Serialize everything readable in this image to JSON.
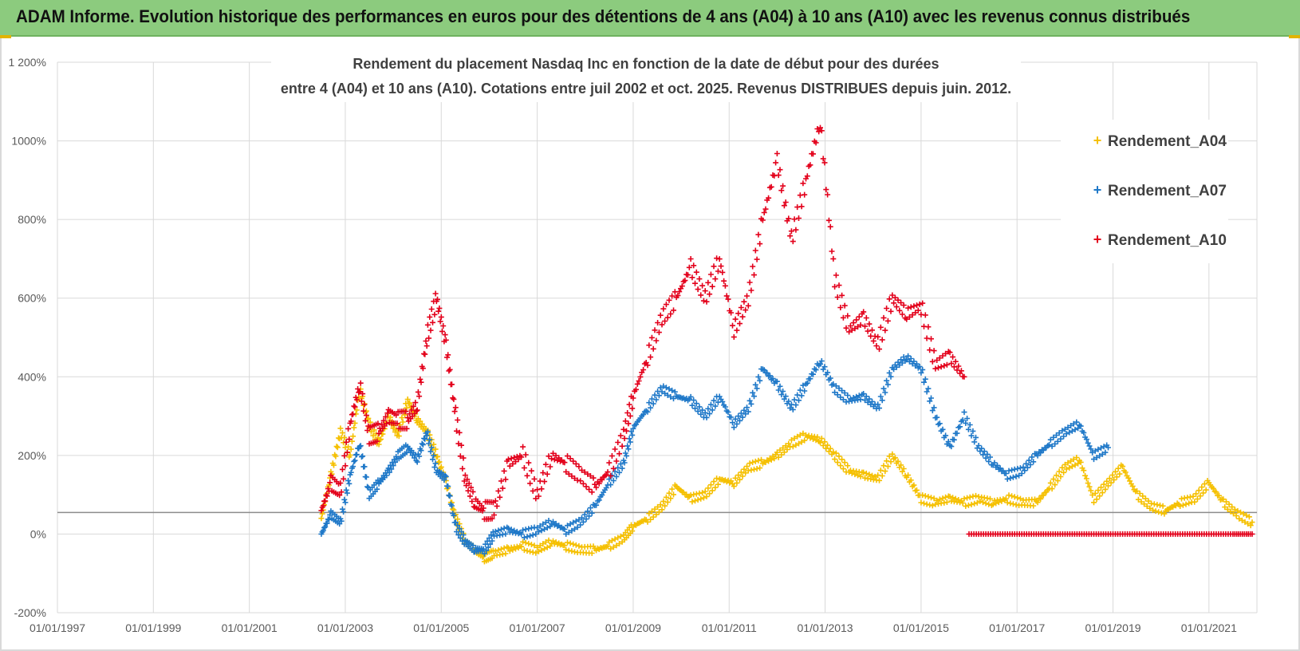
{
  "page_title": "ADAM Informe. Evolution historique des performances en euros pour des détentions de 4 ans (A04) à 10 ans (A10) avec les revenus connus distribués",
  "colors": {
    "banner": "#8ccb7e",
    "A04": "#f5c000",
    "A07": "#1f78c8",
    "A10": "#e3001b",
    "grid": "#d9d9d9"
  },
  "chart_data": {
    "type": "scatter",
    "title_lines": [
      "Rendement du placement Nasdaq Inc en fonction de la date de début pour des durées",
      "entre 4 (A04) et 10 ans (A10). Cotations entre juil 2002 et oct. 2025.  Revenus DISTRIBUES depuis juin. 2012."
    ],
    "xlabel": "",
    "ylabel": "",
    "x_range": [
      1997.0,
      2022.0
    ],
    "ylim": [
      -200,
      1200
    ],
    "y_ticks": [
      {
        "value": -200,
        "label": "-200%"
      },
      {
        "value": 0,
        "label": "0%"
      },
      {
        "value": 200,
        "label": "200%"
      },
      {
        "value": 400,
        "label": "400%"
      },
      {
        "value": 600,
        "label": "600%"
      },
      {
        "value": 800,
        "label": "800%"
      },
      {
        "value": 1000,
        "label": "1000%"
      },
      {
        "value": 1200,
        "label": "1 200%"
      }
    ],
    "x_ticks": [
      {
        "value": 1997,
        "label": "01/01/1997"
      },
      {
        "value": 1999,
        "label": "01/01/1999"
      },
      {
        "value": 2001,
        "label": "01/01/2001"
      },
      {
        "value": 2003,
        "label": "01/01/2003"
      },
      {
        "value": 2005,
        "label": "01/01/2005"
      },
      {
        "value": 2007,
        "label": "01/01/2007"
      },
      {
        "value": 2009,
        "label": "01/01/2009"
      },
      {
        "value": 2011,
        "label": "01/01/2011"
      },
      {
        "value": 2013,
        "label": "01/01/2013"
      },
      {
        "value": 2015,
        "label": "01/01/2015"
      },
      {
        "value": 2017,
        "label": "01/01/2017"
      },
      {
        "value": 2019,
        "label": "01/01/2019"
      },
      {
        "value": 2021,
        "label": "01/01/2021"
      }
    ],
    "reference_line_value": 55,
    "legend_position": "right",
    "series": [
      {
        "name": "Rendement_A04",
        "x": [
          2002.5,
          2002.7,
          2002.9,
          2003.1,
          2003.3,
          2003.5,
          2003.7,
          2003.9,
          2004.1,
          2004.3,
          2004.5,
          2004.7,
          2004.9,
          2005.1,
          2005.3,
          2005.5,
          2005.7,
          2005.9,
          2006.1,
          2006.4,
          2006.7,
          2007.0,
          2007.3,
          2007.6,
          2007.9,
          2008.2,
          2008.5,
          2008.8,
          2009.0,
          2009.3,
          2009.6,
          2009.9,
          2010.2,
          2010.5,
          2010.8,
          2011.1,
          2011.4,
          2011.7,
          2012.0,
          2012.3,
          2012.6,
          2012.9,
          2013.2,
          2013.5,
          2013.8,
          2014.1,
          2014.4,
          2014.7,
          2015.0,
          2015.3,
          2015.6,
          2015.9,
          2016.2,
          2016.5,
          2016.8,
          2017.1,
          2017.4,
          2017.7,
          2018.0,
          2018.3,
          2018.6,
          2018.9,
          2019.2,
          2019.5,
          2019.8,
          2020.1,
          2020.4,
          2020.7,
          2021.0,
          2021.3,
          2021.6,
          2021.9
        ],
        "y": [
          40,
          150,
          260,
          200,
          370,
          280,
          230,
          300,
          250,
          340,
          290,
          260,
          200,
          130,
          40,
          -20,
          -40,
          -60,
          -50,
          -40,
          -30,
          -40,
          -20,
          -30,
          -40,
          -40,
          -30,
          -10,
          20,
          40,
          70,
          120,
          90,
          100,
          140,
          130,
          170,
          180,
          200,
          230,
          250,
          240,
          200,
          160,
          150,
          140,
          200,
          150,
          90,
          80,
          90,
          80,
          90,
          80,
          90,
          80,
          80,
          120,
          170,
          190,
          90,
          130,
          170,
          100,
          70,
          60,
          80,
          90,
          130,
          80,
          50,
          30
        ]
      },
      {
        "name": "Rendement_A07",
        "x": [
          2002.5,
          2002.7,
          2002.9,
          2003.1,
          2003.3,
          2003.5,
          2003.7,
          2003.9,
          2004.1,
          2004.3,
          2004.5,
          2004.7,
          2004.9,
          2005.1,
          2005.3,
          2005.5,
          2005.7,
          2005.9,
          2006.1,
          2006.4,
          2006.7,
          2007.0,
          2007.3,
          2007.6,
          2007.9,
          2008.2,
          2008.5,
          2008.8,
          2009.0,
          2009.3,
          2009.6,
          2009.9,
          2010.2,
          2010.5,
          2010.8,
          2011.1,
          2011.4,
          2011.7,
          2012.0,
          2012.3,
          2012.6,
          2012.9,
          2013.2,
          2013.5,
          2013.8,
          2014.1,
          2014.4,
          2014.7,
          2015.0,
          2015.3,
          2015.6,
          2015.9,
          2016.2,
          2016.5,
          2016.8,
          2017.1,
          2017.4,
          2017.7,
          2018.0,
          2018.3,
          2018.6,
          2018.9
        ],
        "y": [
          0,
          50,
          30,
          150,
          230,
          100,
          130,
          160,
          200,
          220,
          190,
          260,
          160,
          140,
          20,
          -20,
          -40,
          -40,
          0,
          10,
          0,
          10,
          30,
          10,
          30,
          70,
          130,
          180,
          270,
          320,
          370,
          350,
          340,
          300,
          350,
          280,
          320,
          420,
          380,
          320,
          380,
          440,
          370,
          340,
          350,
          320,
          420,
          450,
          420,
          300,
          220,
          300,
          220,
          180,
          150,
          160,
          200,
          230,
          260,
          280,
          200,
          220
        ]
      },
      {
        "name": "Rendement_A10",
        "x": [
          2002.5,
          2002.7,
          2002.9,
          2003.1,
          2003.3,
          2003.5,
          2003.7,
          2003.9,
          2004.1,
          2004.3,
          2004.5,
          2004.7,
          2004.9,
          2005.1,
          2005.3,
          2005.5,
          2005.7,
          2005.9,
          2006.1,
          2006.4,
          2006.7,
          2007.0,
          2007.3,
          2007.6,
          2007.9,
          2008.2,
          2008.5,
          2008.8,
          2009.0,
          2009.3,
          2009.6,
          2009.9,
          2010.2,
          2010.5,
          2010.8,
          2011.1,
          2011.4,
          2011.7,
          2012.0,
          2012.3,
          2012.6,
          2012.9,
          2013.2,
          2013.5,
          2013.8,
          2014.1,
          2014.4,
          2014.7,
          2015.0,
          2015.3,
          2015.6,
          2015.9
        ],
        "y": [
          60,
          130,
          110,
          280,
          380,
          250,
          260,
          300,
          290,
          290,
          330,
          500,
          600,
          480,
          300,
          140,
          80,
          60,
          60,
          180,
          200,
          100,
          200,
          180,
          150,
          120,
          160,
          250,
          350,
          450,
          550,
          600,
          680,
          600,
          700,
          520,
          600,
          800,
          950,
          750,
          900,
          1050,
          650,
          520,
          550,
          480,
          600,
          560,
          580,
          430,
          450,
          400
        ],
        "x2": [
          2016.0,
          2016.5,
          2017.0,
          2017.5,
          2018.0,
          2018.5,
          2019.0,
          2019.5,
          2020.0,
          2020.5,
          2021.0,
          2021.5,
          2021.9
        ],
        "y2": [
          0,
          0,
          0,
          0,
          0,
          0,
          0,
          0,
          0,
          0,
          0,
          0,
          0
        ]
      }
    ]
  }
}
